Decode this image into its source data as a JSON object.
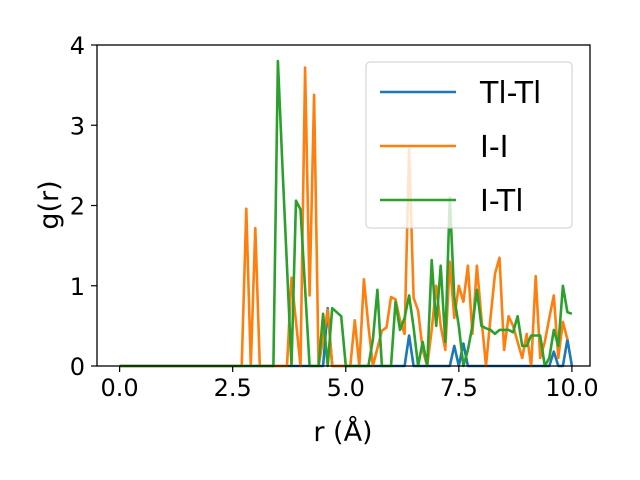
{
  "chart_data": {
    "type": "line",
    "title": "",
    "xlabel": "r (Å)",
    "ylabel": "g(r)",
    "xlim": [
      -0.5,
      10.4
    ],
    "ylim": [
      0,
      4
    ],
    "xticks": [
      "0.0",
      "2.5",
      "5.0",
      "7.5",
      "10.0"
    ],
    "yticks": [
      "0",
      "1",
      "2",
      "3",
      "4"
    ],
    "grid": false,
    "legend_position": "top-right",
    "series": [
      {
        "name": "Tl-Tl",
        "color": "#1f77b4",
        "points": [
          [
            0,
            0
          ],
          [
            4.5,
            0
          ],
          [
            4.6,
            0.72
          ],
          [
            4.7,
            0
          ],
          [
            6.3,
            0
          ],
          [
            6.4,
            0.38
          ],
          [
            6.5,
            0
          ],
          [
            7.3,
            0
          ],
          [
            7.4,
            0.25
          ],
          [
            7.5,
            0
          ],
          [
            7.6,
            0.28
          ],
          [
            7.7,
            0
          ],
          [
            9.5,
            0
          ],
          [
            9.6,
            0.18
          ],
          [
            9.7,
            0
          ],
          [
            9.8,
            0
          ],
          [
            9.9,
            0.33
          ],
          [
            10.0,
            0
          ]
        ]
      },
      {
        "name": "I-I",
        "color": "#ff7f0e",
        "points": [
          [
            0,
            0
          ],
          [
            2.7,
            0
          ],
          [
            2.8,
            1.96
          ],
          [
            2.9,
            0
          ],
          [
            3.0,
            1.72
          ],
          [
            3.1,
            0
          ],
          [
            3.7,
            0
          ],
          [
            3.8,
            1.1
          ],
          [
            4.0,
            0
          ],
          [
            4.1,
            3.72
          ],
          [
            4.2,
            0.88
          ],
          [
            4.3,
            3.38
          ],
          [
            4.4,
            0
          ],
          [
            4.6,
            0.7
          ],
          [
            4.7,
            0
          ],
          [
            5.1,
            0
          ],
          [
            5.2,
            0.57
          ],
          [
            5.3,
            0
          ],
          [
            5.4,
            1.08
          ],
          [
            5.5,
            0.5
          ],
          [
            5.6,
            0
          ],
          [
            5.8,
            0.44
          ],
          [
            5.9,
            0.48
          ],
          [
            6.0,
            0.86
          ],
          [
            6.1,
            0.83
          ],
          [
            6.2,
            0.57
          ],
          [
            6.3,
            0.4
          ],
          [
            6.4,
            2.7
          ],
          [
            6.5,
            0.85
          ],
          [
            6.6,
            0.69
          ],
          [
            6.7,
            0.2
          ],
          [
            6.8,
            0
          ],
          [
            6.9,
            0.45
          ],
          [
            7.0,
            1.0
          ],
          [
            7.1,
            0.5
          ],
          [
            7.2,
            0.2
          ],
          [
            7.3,
            1.3
          ],
          [
            7.4,
            0.6
          ],
          [
            7.5,
            1.0
          ],
          [
            7.6,
            0.8
          ],
          [
            7.7,
            1.25
          ],
          [
            7.8,
            0.4
          ],
          [
            7.9,
            1.25
          ],
          [
            8.0,
            0.6
          ],
          [
            8.1,
            0
          ],
          [
            8.2,
            0.6
          ],
          [
            8.3,
            1.15
          ],
          [
            8.4,
            1.35
          ],
          [
            8.5,
            0.2
          ],
          [
            8.6,
            0.62
          ],
          [
            8.7,
            0.5
          ],
          [
            8.8,
            0.3
          ],
          [
            8.9,
            0.1
          ],
          [
            9.0,
            0.4
          ],
          [
            9.1,
            0
          ],
          [
            9.2,
            1.12
          ],
          [
            9.3,
            0.1
          ],
          [
            9.4,
            0.3
          ],
          [
            9.5,
            0.6
          ],
          [
            9.6,
            0.88
          ],
          [
            9.7,
            0.1
          ],
          [
            9.8,
            0.55
          ],
          [
            9.9,
            0.33
          ]
        ]
      },
      {
        "name": "I-Tl",
        "color": "#2ca02c",
        "points": [
          [
            0,
            0
          ],
          [
            3.4,
            0
          ],
          [
            3.5,
            3.8
          ],
          [
            3.6,
            2.5
          ],
          [
            3.8,
            0
          ],
          [
            3.9,
            2.06
          ],
          [
            4.0,
            1.95
          ],
          [
            4.2,
            0
          ],
          [
            4.4,
            0
          ],
          [
            4.5,
            0.65
          ],
          [
            4.6,
            0
          ],
          [
            4.7,
            0.72
          ],
          [
            4.8,
            0.67
          ],
          [
            4.9,
            0.62
          ],
          [
            5.0,
            0
          ],
          [
            5.5,
            0
          ],
          [
            5.6,
            0.33
          ],
          [
            5.7,
            0.95
          ],
          [
            5.8,
            0
          ],
          [
            6.0,
            0
          ],
          [
            6.1,
            0.8
          ],
          [
            6.2,
            0.45
          ],
          [
            6.3,
            0.6
          ],
          [
            6.4,
            0.88
          ],
          [
            6.5,
            0.48
          ],
          [
            6.6,
            0
          ],
          [
            6.7,
            0.3
          ],
          [
            6.8,
            0
          ],
          [
            6.9,
            1.32
          ],
          [
            7.0,
            0.5
          ],
          [
            7.1,
            1.25
          ],
          [
            7.2,
            0.3
          ],
          [
            7.3,
            2.1
          ],
          [
            7.4,
            0.85
          ],
          [
            7.5,
            0.5
          ],
          [
            7.6,
            0
          ],
          [
            7.7,
            0.2
          ],
          [
            7.8,
            0.5
          ],
          [
            7.9,
            0.95
          ],
          [
            8.0,
            0.5
          ],
          [
            8.1,
            0.47
          ],
          [
            8.2,
            0.45
          ],
          [
            8.3,
            0.4
          ],
          [
            8.4,
            0.45
          ],
          [
            8.5,
            0.45
          ],
          [
            8.6,
            0.45
          ],
          [
            8.7,
            0.42
          ],
          [
            8.8,
            0.62
          ],
          [
            8.9,
            0.25
          ],
          [
            9.0,
            0.25
          ],
          [
            9.1,
            0.38
          ],
          [
            9.2,
            0.38
          ],
          [
            9.3,
            0.38
          ],
          [
            9.4,
            0
          ],
          [
            9.5,
            0.1
          ],
          [
            9.6,
            0.45
          ],
          [
            9.7,
            0.25
          ],
          [
            9.8,
            1.0
          ],
          [
            9.9,
            0.67
          ],
          [
            10.0,
            0.65
          ]
        ]
      }
    ]
  }
}
